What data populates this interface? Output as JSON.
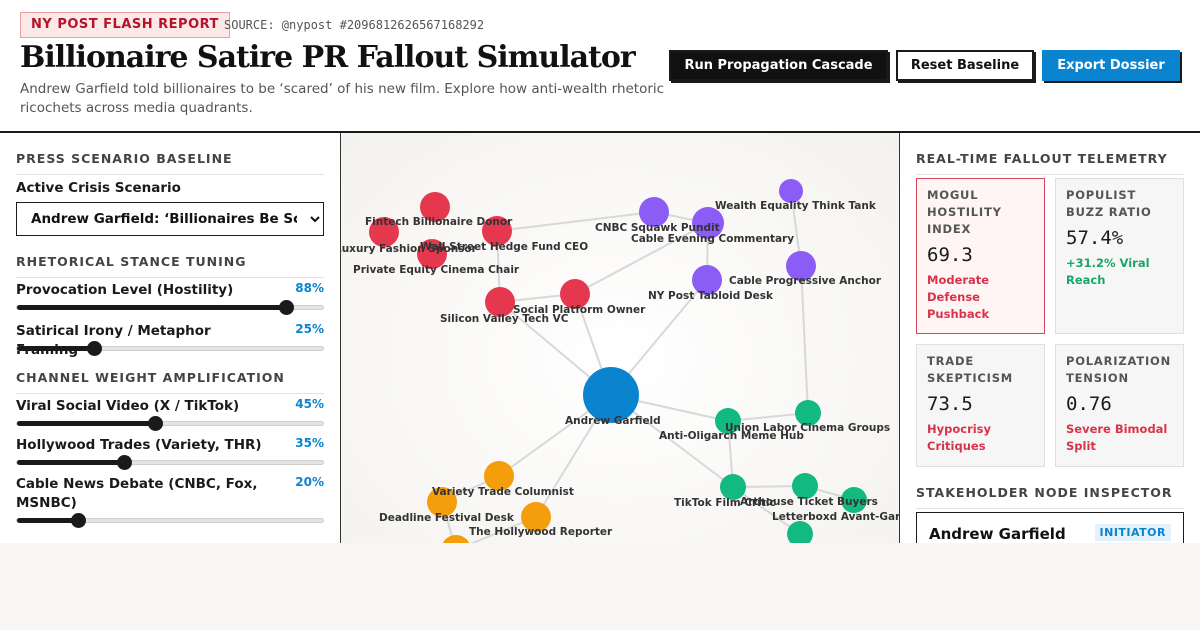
{
  "header": {
    "flash_badge": "NY POST FLASH REPORT",
    "source": "SOURCE: @nypost #2096812626567168292",
    "title": "Billionaire Satire PR Fallout Simulator",
    "subtitle": "Andrew Garfield told billionaires to be ‘scared’ of his new film. Explore how anti-wealth rhetoric ricochets across media quadrants.",
    "buttons": {
      "run": "Run Propagation Cascade",
      "reset": "Reset Baseline",
      "export": "Export Dossier"
    }
  },
  "left_panel": {
    "baseline_heading": "PRESS SCENARIO BASELINE",
    "scenario_label": "Active Crisis Scenario",
    "scenario_selected": "Andrew Garfield: ‘Billionaires Be Scared’",
    "stance_heading": "RHETORICAL STANCE TUNING",
    "stance_sliders": [
      {
        "label": "Provocation Level (Hostility)",
        "value": 88,
        "display": "88%"
      },
      {
        "label": "Satirical Irony / Metaphor Framing",
        "value": 25,
        "display": "25%"
      }
    ],
    "channel_heading": "CHANNEL WEIGHT AMPLIFICATION",
    "channel_sliders": [
      {
        "label": "Viral Social Video (X / TikTok)",
        "value": 45,
        "display": "45%"
      },
      {
        "label": "Hollywood Trades (Variety, THR)",
        "value": 35,
        "display": "35%"
      },
      {
        "label": "Cable News Debate (CNBC, Fox, MSNBC)",
        "value": 20,
        "display": "20%"
      }
    ]
  },
  "graph": {
    "colors": {
      "initiator": "#0b84d0",
      "billionaire": "#e5384f",
      "cable": "#8b5cf6",
      "populist": "#12b981",
      "trades": "#f59e0b",
      "edge": "#d8d8d8"
    },
    "nodes": [
      {
        "id": "garfield",
        "label": "Andrew Garfield",
        "group": "initiator"
      },
      {
        "id": "fintech",
        "label": "Fintech Billionaire Donor",
        "group": "billionaire"
      },
      {
        "id": "luxury",
        "label": "Luxury Fashion Sponsor",
        "group": "billionaire"
      },
      {
        "id": "hedge",
        "label": "Wall Street Hedge Fund CEO",
        "group": "billionaire"
      },
      {
        "id": "pe",
        "label": "Private Equity Cinema Chair",
        "group": "billionaire"
      },
      {
        "id": "svvc",
        "label": "Silicon Valley Tech VC",
        "group": "billionaire"
      },
      {
        "id": "social",
        "label": "Social Platform Owner",
        "group": "billionaire"
      },
      {
        "id": "cnbc",
        "label": "CNBC Squawk Pundit",
        "group": "cable"
      },
      {
        "id": "evening",
        "label": "Cable Evening Commentary",
        "group": "cable"
      },
      {
        "id": "wealth",
        "label": "Wealth Equality Think Tank",
        "group": "cable"
      },
      {
        "id": "nypost",
        "label": "NY Post Tabloid Desk",
        "group": "cable"
      },
      {
        "id": "progressive",
        "label": "Cable Progressive Anchor",
        "group": "cable"
      },
      {
        "id": "meme",
        "label": "Anti-Oligarch Meme Hub",
        "group": "populist"
      },
      {
        "id": "labor",
        "label": "Union Labor Cinema Groups",
        "group": "populist"
      },
      {
        "id": "tiktok",
        "label": "TikTok Film Critic",
        "group": "populist"
      },
      {
        "id": "arthouse",
        "label": "Arthouse Ticket Buyers",
        "group": "populist"
      },
      {
        "id": "letterboxd",
        "label": "Letterboxd Avant-Garde",
        "group": "populist"
      },
      {
        "id": "fan",
        "label": "",
        "group": "populist"
      },
      {
        "id": "variety",
        "label": "Variety Trade Columnist",
        "group": "trades"
      },
      {
        "id": "deadline",
        "label": "Deadline Festival Desk",
        "group": "trades"
      },
      {
        "id": "thr",
        "label": "The Hollywood Reporter",
        "group": "trades"
      },
      {
        "id": "indiewire",
        "label": "",
        "group": "trades"
      }
    ],
    "edges": [
      [
        "garfield",
        "social"
      ],
      [
        "garfield",
        "svvc"
      ],
      [
        "garfield",
        "nypost"
      ],
      [
        "garfield",
        "meme"
      ],
      [
        "garfield",
        "variety"
      ],
      [
        "garfield",
        "thr"
      ],
      [
        "garfield",
        "tiktok"
      ],
      [
        "svvc",
        "social"
      ],
      [
        "social",
        "evening"
      ],
      [
        "hedge",
        "cnbc"
      ],
      [
        "hedge",
        "svvc"
      ],
      [
        "cnbc",
        "evening"
      ],
      [
        "evening",
        "nypost"
      ],
      [
        "wealth",
        "progressive"
      ],
      [
        "progressive",
        "labor"
      ],
      [
        "meme",
        "labor"
      ],
      [
        "meme",
        "tiktok"
      ],
      [
        "tiktok",
        "arthouse"
      ],
      [
        "arthouse",
        "letterboxd"
      ],
      [
        "tiktok",
        "fan"
      ],
      [
        "variety",
        "deadline"
      ],
      [
        "deadline",
        "indiewire"
      ],
      [
        "thr",
        "indiewire"
      ]
    ]
  },
  "right_panel": {
    "telemetry_heading": "REAL-TIME FALLOUT TELEMETRY",
    "metrics": [
      {
        "label": "MOGUL HOSTILITY INDEX",
        "value": "69.3",
        "note": "Moderate Defense Pushback",
        "tone": "red",
        "alert": true
      },
      {
        "label": "POPULIST BUZZ RATIO",
        "value": "57.4%",
        "note": "+31.2% Viral Reach",
        "tone": "green",
        "alert": false
      },
      {
        "label": "TRADE SKEPTICISM",
        "value": "73.5",
        "note": "Hypocrisy Critiques",
        "tone": "red",
        "alert": false
      },
      {
        "label": "POLARIZATION TENSION",
        "value": "0.76",
        "note": "Severe Bimodal Split",
        "tone": "red",
        "alert": false
      }
    ],
    "inspector_heading": "STAKEHOLDER NODE INSPECTOR",
    "inspector": {
      "name": "Andrew Garfield",
      "role": "INITIATOR"
    }
  }
}
